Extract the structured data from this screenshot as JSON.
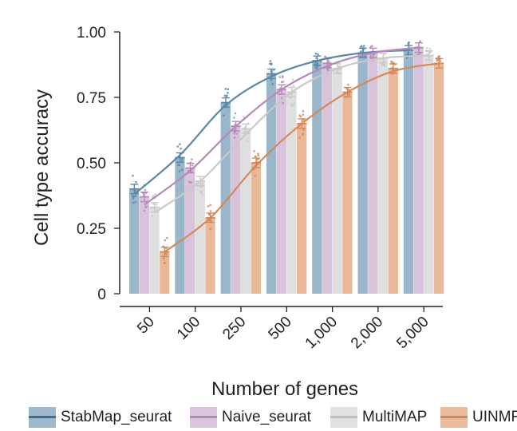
{
  "chart_data": {
    "type": "bar",
    "xlabel": "Number of genes",
    "ylabel": "Cell type accuracy",
    "categories": [
      "50",
      "100",
      "250",
      "500",
      "1,000",
      "2,000",
      "5,000"
    ],
    "ylim": [
      0,
      1.0
    ],
    "yticks": [
      0,
      0.25,
      0.5,
      0.75,
      1.0
    ],
    "ytick_labels": [
      "0",
      "0.25",
      "0.50",
      "0.75",
      "1.00"
    ],
    "series": [
      {
        "name": "StabMap_seurat",
        "color": "#5b87a8",
        "bar_color": "#8eaec4",
        "values": [
          0.4,
          0.52,
          0.73,
          0.84,
          0.89,
          0.92,
          0.93
        ],
        "curve": [
          0.38,
          0.53,
          0.72,
          0.83,
          0.89,
          0.92,
          0.93
        ]
      },
      {
        "name": "Naive_seurat",
        "color": "#b48ab8",
        "bar_color": "#d4bcd6",
        "values": [
          0.37,
          0.48,
          0.64,
          0.78,
          0.88,
          0.92,
          0.94
        ],
        "curve": [
          0.34,
          0.47,
          0.64,
          0.78,
          0.87,
          0.92,
          0.94
        ]
      },
      {
        "name": "MultiMAP",
        "color": "#c9c9c9",
        "bar_color": "#dcdcdc",
        "values": [
          0.33,
          0.43,
          0.63,
          0.77,
          0.86,
          0.9,
          0.91
        ],
        "curve": [
          0.31,
          0.43,
          0.61,
          0.77,
          0.86,
          0.9,
          0.91
        ]
      },
      {
        "name": "UINMF",
        "color": "#d4895a",
        "bar_color": "#e6b08e",
        "values": [
          0.16,
          0.29,
          0.5,
          0.65,
          0.77,
          0.86,
          0.88
        ],
        "curve": [
          0.16,
          0.29,
          0.49,
          0.65,
          0.77,
          0.85,
          0.88
        ]
      }
    ],
    "legend_position": "bottom"
  },
  "legend": {
    "items": [
      "StabMap_seurat",
      "Naive_seurat",
      "MultiMAP",
      "UINMF"
    ]
  }
}
